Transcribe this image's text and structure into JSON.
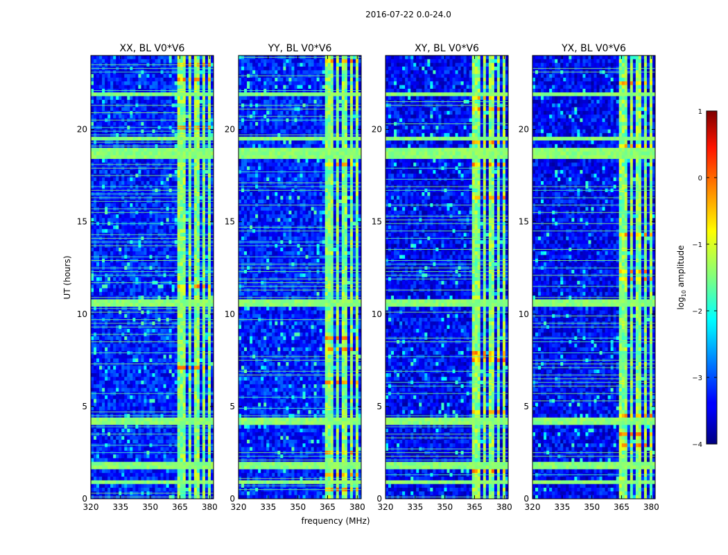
{
  "chart_data": {
    "type": "heatmap",
    "suptitle": "2016-07-22 0.0-24.0",
    "xlabel": "frequency (MHz)",
    "ylabel": "UT (hours)",
    "xlim": [
      320,
      382
    ],
    "ylim": [
      0,
      24
    ],
    "x_ticks": [
      320,
      335,
      350,
      365,
      380
    ],
    "y_ticks": [
      0,
      5,
      10,
      15,
      20
    ],
    "panels": [
      {
        "title": "XX, BL V0*V6",
        "polarization": "XX"
      },
      {
        "title": "YY, BL V0*V6",
        "polarization": "YY"
      },
      {
        "title": "XY, BL V0*V6",
        "polarization": "XY"
      },
      {
        "title": "YX, BL V0*V6",
        "polarization": "YX"
      }
    ],
    "colorbar": {
      "label": "log",
      "label_subscript": "10",
      "label_suffix": " amplitude",
      "colormap": "jet",
      "range": [
        -4,
        1
      ],
      "ticks": [
        -4,
        -3,
        -2,
        -1,
        0,
        1
      ],
      "tick_labels": [
        "−4",
        "−3",
        "−2",
        "−1",
        "0",
        "1"
      ]
    },
    "rfi_bands_mhz": [
      [
        364,
        368
      ],
      [
        369.5,
        370.5
      ],
      [
        372,
        375.5
      ],
      [
        376.5,
        377.5
      ],
      [
        378.5,
        380
      ]
    ],
    "flagged_time_bands_hours": [
      [
        0.7,
        1.0
      ],
      [
        1.6,
        1.9
      ],
      [
        4.1,
        4.4
      ],
      [
        10.4,
        10.8
      ],
      [
        18.5,
        18.9
      ],
      [
        19.4,
        19.6
      ],
      [
        21.8,
        22.0
      ]
    ]
  }
}
